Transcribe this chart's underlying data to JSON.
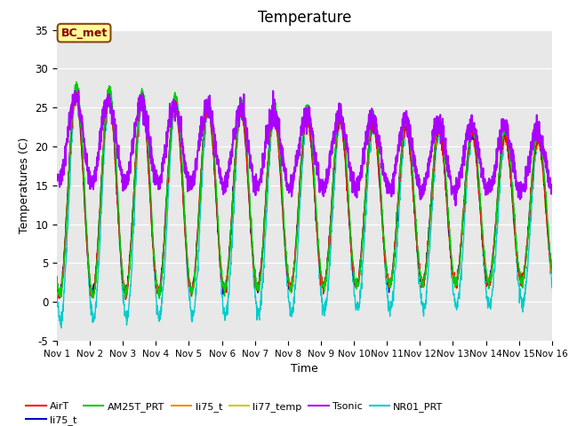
{
  "title": "Temperature",
  "xlabel": "Time",
  "ylabel": "Temperatures (C)",
  "ylim": [
    -5,
    35
  ],
  "xlim": [
    0,
    15
  ],
  "series_colors": [
    "#ff0000",
    "#0000cc",
    "#00cc00",
    "#ff8800",
    "#cccc00",
    "#aa00ff",
    "#00cccc"
  ],
  "series_widths": [
    1.0,
    1.0,
    1.0,
    1.0,
    1.0,
    1.5,
    1.0
  ],
  "legend_names": [
    "AirT",
    "li75_t",
    "AM25T_PRT",
    "li75_t",
    "li77_temp",
    "Tsonic",
    "NR01_PRT"
  ],
  "annotation_text": "BC_met",
  "background_color": "#e8e8e8",
  "xtick_labels": [
    "Nov 1",
    "Nov 2",
    "Nov 3",
    "Nov 4",
    "Nov 5",
    "Nov 6",
    "Nov 7",
    "Nov 8",
    "Nov 9",
    "Nov 10",
    "Nov 11",
    "Nov 12",
    "Nov 13",
    "Nov 14",
    "Nov 15",
    "Nov 16"
  ],
  "xtick_positions": [
    0,
    1,
    2,
    3,
    4,
    5,
    6,
    7,
    8,
    9,
    10,
    11,
    12,
    13,
    14,
    15
  ],
  "ytick_positions": [
    -5,
    0,
    5,
    10,
    15,
    20,
    25,
    30,
    35
  ],
  "num_points": 2000
}
